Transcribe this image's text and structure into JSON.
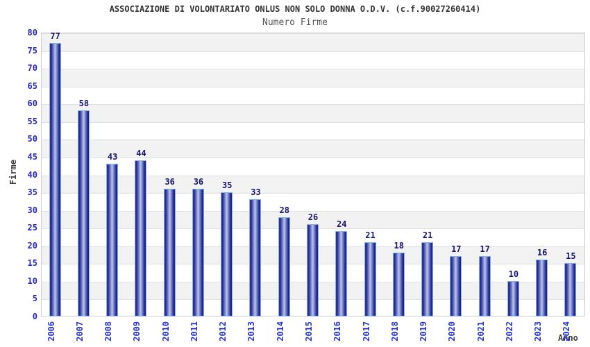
{
  "header": {
    "title": "ASSOCIAZIONE DI VOLONTARIATO ONLUS NON SOLO DONNA O.D.V. (c.f.90027260414)",
    "subtitle": "Numero Firme"
  },
  "chart_data": {
    "type": "bar",
    "title": "ASSOCIAZIONE DI VOLONTARIATO ONLUS NON SOLO DONNA O.D.V. (c.f.90027260414)",
    "subtitle": "Numero Firme",
    "categories": [
      "2006",
      "2007",
      "2008",
      "2009",
      "2010",
      "2011",
      "2012",
      "2013",
      "2014",
      "2015",
      "2016",
      "2017",
      "2018",
      "2019",
      "2020",
      "2021",
      "2022",
      "2023",
      "2024"
    ],
    "values": [
      77,
      58,
      43,
      44,
      36,
      36,
      35,
      33,
      28,
      26,
      24,
      21,
      18,
      21,
      17,
      17,
      10,
      16,
      15
    ],
    "xlabel": "Anno",
    "ylabel": "Firme",
    "ylim": [
      0,
      80
    ],
    "ytick_step": 5,
    "grid": "horizontal gridlines with alternating gray/white bands every 5 units",
    "legend": "none"
  },
  "colors": {
    "title": "#333333",
    "subtitle": "#555555",
    "tick_label": "#2626cc",
    "xtick_label": "#2433cc",
    "value_label": "#15156e",
    "axis_title": "#3d3d3d",
    "band_gray": "#f2f2f2",
    "band_white": "#ffffff",
    "grid_line": "#e0e0e0",
    "plot_border": "#cccccc",
    "bar_border": "#7fb2f2",
    "bar_dark": "#20207e",
    "bar_light": "#bcc6ee"
  }
}
